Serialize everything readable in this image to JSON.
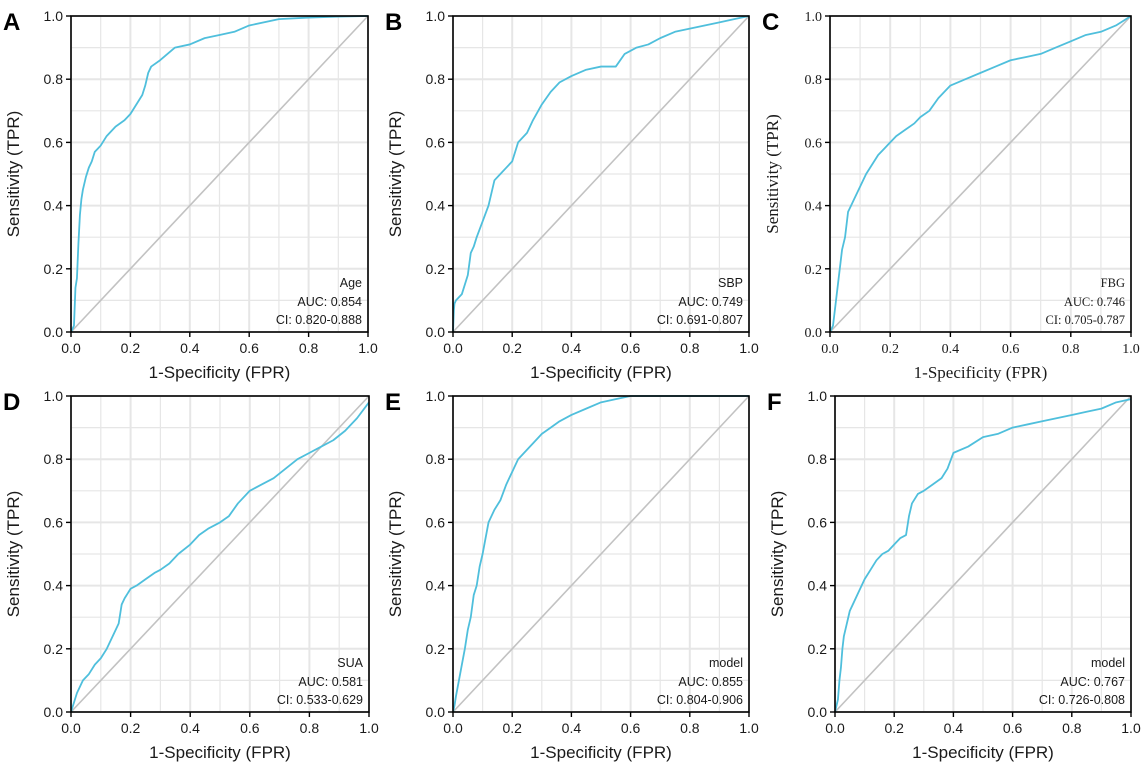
{
  "figure": {
    "colors": {
      "roc": "#4fbfdc",
      "diagonal": "#c2c2c2",
      "grid": "#e6e6e6",
      "frame": "#000000"
    },
    "x_ticks": [
      "0.0",
      "0.2",
      "0.4",
      "0.6",
      "0.8",
      "1.0"
    ],
    "y_ticks": [
      "0.0",
      "0.2",
      "0.4",
      "0.6",
      "0.8",
      "1.0"
    ]
  },
  "chart_data": [
    {
      "panel": "A",
      "type": "line",
      "xlabel": "1-Specificity (FPR)",
      "ylabel": "Sensitivity (TPR)",
      "xlim": [
        0,
        1
      ],
      "ylim": [
        0,
        1
      ],
      "legend": {
        "name": "Age",
        "auc": "AUC: 0.854",
        "ci": "CI: 0.820-0.888",
        "placement": "bottom-right"
      },
      "x": [
        0,
        0.01,
        0.015,
        0.02,
        0.025,
        0.03,
        0.035,
        0.04,
        0.05,
        0.06,
        0.07,
        0.08,
        0.09,
        0.1,
        0.12,
        0.15,
        0.18,
        0.2,
        0.22,
        0.24,
        0.25,
        0.26,
        0.27,
        0.3,
        0.35,
        0.4,
        0.45,
        0.5,
        0.55,
        0.6,
        0.7,
        0.8,
        0.9,
        1.0
      ],
      "y": [
        0,
        0.02,
        0.14,
        0.17,
        0.28,
        0.37,
        0.42,
        0.45,
        0.49,
        0.52,
        0.54,
        0.57,
        0.58,
        0.59,
        0.62,
        0.65,
        0.67,
        0.69,
        0.72,
        0.75,
        0.78,
        0.82,
        0.84,
        0.86,
        0.9,
        0.91,
        0.93,
        0.94,
        0.95,
        0.97,
        0.99,
        0.995,
        0.998,
        1.0
      ]
    },
    {
      "panel": "B",
      "type": "line",
      "xlabel": "1-Specificity (FPR)",
      "ylabel": "Sensitivity (TPR)",
      "xlim": [
        0,
        1
      ],
      "ylim": [
        0,
        1
      ],
      "legend": {
        "name": "SBP",
        "auc": "AUC: 0.749",
        "ci": "CI: 0.691-0.807",
        "placement": "bottom-right"
      },
      "x": [
        0,
        0.003,
        0.005,
        0.01,
        0.03,
        0.05,
        0.06,
        0.07,
        0.08,
        0.1,
        0.12,
        0.14,
        0.16,
        0.18,
        0.2,
        0.22,
        0.25,
        0.27,
        0.3,
        0.33,
        0.36,
        0.4,
        0.45,
        0.5,
        0.55,
        0.58,
        0.62,
        0.66,
        0.7,
        0.75,
        0.8,
        0.85,
        0.9,
        0.95,
        1.0
      ],
      "y": [
        0,
        0.07,
        0.09,
        0.1,
        0.12,
        0.18,
        0.25,
        0.27,
        0.3,
        0.35,
        0.4,
        0.48,
        0.5,
        0.52,
        0.54,
        0.6,
        0.63,
        0.67,
        0.72,
        0.76,
        0.79,
        0.81,
        0.83,
        0.84,
        0.84,
        0.88,
        0.9,
        0.91,
        0.93,
        0.95,
        0.96,
        0.97,
        0.98,
        0.99,
        1.0
      ]
    },
    {
      "panel": "C",
      "type": "line",
      "font": "serif",
      "xlabel": "1-Specificity (FPR)",
      "ylabel": "Sensitivity (TPR)",
      "xlim": [
        0,
        1
      ],
      "ylim": [
        0,
        1
      ],
      "legend": {
        "name": "FBG",
        "auc": "AUC: 0.746",
        "ci": "CI: 0.705-0.787",
        "placement": "bottom-right"
      },
      "x": [
        0,
        0.01,
        0.02,
        0.03,
        0.04,
        0.05,
        0.06,
        0.07,
        0.08,
        0.1,
        0.12,
        0.14,
        0.16,
        0.18,
        0.2,
        0.22,
        0.25,
        0.28,
        0.3,
        0.33,
        0.36,
        0.4,
        0.45,
        0.5,
        0.55,
        0.6,
        0.65,
        0.7,
        0.75,
        0.8,
        0.85,
        0.9,
        0.95,
        1.0
      ],
      "y": [
        0,
        0.02,
        0.1,
        0.18,
        0.26,
        0.3,
        0.38,
        0.4,
        0.42,
        0.46,
        0.5,
        0.53,
        0.56,
        0.58,
        0.6,
        0.62,
        0.64,
        0.66,
        0.68,
        0.7,
        0.74,
        0.78,
        0.8,
        0.82,
        0.84,
        0.86,
        0.87,
        0.88,
        0.9,
        0.92,
        0.94,
        0.95,
        0.97,
        1.0
      ]
    },
    {
      "panel": "D",
      "type": "line",
      "xlabel": "1-Specificity (FPR)",
      "ylabel": "Sensitivity (TPR)",
      "xlim": [
        0,
        1
      ],
      "ylim": [
        0,
        1
      ],
      "legend": {
        "name": "SUA",
        "auc": "AUC: 0.581",
        "ci": "CI: 0.533-0.629",
        "placement": "bottom-right"
      },
      "x": [
        0,
        0.01,
        0.02,
        0.04,
        0.06,
        0.08,
        0.1,
        0.12,
        0.14,
        0.16,
        0.17,
        0.18,
        0.2,
        0.22,
        0.25,
        0.28,
        0.3,
        0.33,
        0.36,
        0.4,
        0.43,
        0.46,
        0.5,
        0.53,
        0.56,
        0.6,
        0.64,
        0.68,
        0.72,
        0.76,
        0.8,
        0.84,
        0.88,
        0.92,
        0.96,
        1.0
      ],
      "y": [
        0,
        0.03,
        0.06,
        0.1,
        0.12,
        0.15,
        0.17,
        0.2,
        0.24,
        0.28,
        0.34,
        0.36,
        0.39,
        0.4,
        0.42,
        0.44,
        0.45,
        0.47,
        0.5,
        0.53,
        0.56,
        0.58,
        0.6,
        0.62,
        0.66,
        0.7,
        0.72,
        0.74,
        0.77,
        0.8,
        0.82,
        0.84,
        0.86,
        0.89,
        0.93,
        0.98
      ]
    },
    {
      "panel": "E",
      "type": "line",
      "xlabel": "1-Specificity (FPR)",
      "ylabel": "Sensitivity (TPR)",
      "xlim": [
        0,
        1
      ],
      "ylim": [
        0,
        1
      ],
      "legend": {
        "name": "model",
        "auc": "AUC: 0.855",
        "ci": "CI: 0.804-0.906",
        "placement": "bottom-right"
      },
      "x": [
        0,
        0.005,
        0.01,
        0.02,
        0.03,
        0.04,
        0.05,
        0.06,
        0.07,
        0.08,
        0.09,
        0.1,
        0.11,
        0.12,
        0.14,
        0.16,
        0.18,
        0.2,
        0.22,
        0.25,
        0.28,
        0.3,
        0.33,
        0.36,
        0.4,
        0.45,
        0.5,
        0.55,
        0.6,
        0.7,
        0.8,
        0.9,
        1.0
      ],
      "y": [
        0,
        0.02,
        0.05,
        0.1,
        0.15,
        0.2,
        0.26,
        0.3,
        0.37,
        0.4,
        0.46,
        0.5,
        0.55,
        0.6,
        0.64,
        0.67,
        0.72,
        0.76,
        0.8,
        0.83,
        0.86,
        0.88,
        0.9,
        0.92,
        0.94,
        0.96,
        0.98,
        0.99,
        1.0,
        1.0,
        1.0,
        1.0,
        1.0
      ]
    },
    {
      "panel": "F",
      "type": "line",
      "xlabel": "1-Specificity (FPR)",
      "ylabel": "Sensitivity (TPR)",
      "xlim": [
        0,
        1
      ],
      "ylim": [
        0,
        1
      ],
      "legend": {
        "name": "model",
        "auc": "AUC: 0.767",
        "ci": "CI: 0.726-0.808",
        "placement": "bottom-right"
      },
      "x": [
        0,
        0.01,
        0.015,
        0.02,
        0.025,
        0.03,
        0.04,
        0.05,
        0.06,
        0.08,
        0.1,
        0.12,
        0.14,
        0.16,
        0.18,
        0.2,
        0.22,
        0.24,
        0.25,
        0.26,
        0.28,
        0.3,
        0.33,
        0.36,
        0.38,
        0.4,
        0.45,
        0.5,
        0.55,
        0.6,
        0.65,
        0.7,
        0.75,
        0.8,
        0.85,
        0.9,
        0.95,
        1.0
      ],
      "y": [
        0,
        0.04,
        0.1,
        0.14,
        0.2,
        0.24,
        0.28,
        0.32,
        0.34,
        0.38,
        0.42,
        0.45,
        0.48,
        0.5,
        0.51,
        0.53,
        0.55,
        0.56,
        0.62,
        0.66,
        0.69,
        0.7,
        0.72,
        0.74,
        0.77,
        0.82,
        0.84,
        0.87,
        0.88,
        0.9,
        0.91,
        0.92,
        0.93,
        0.94,
        0.95,
        0.96,
        0.98,
        0.99
      ]
    }
  ]
}
